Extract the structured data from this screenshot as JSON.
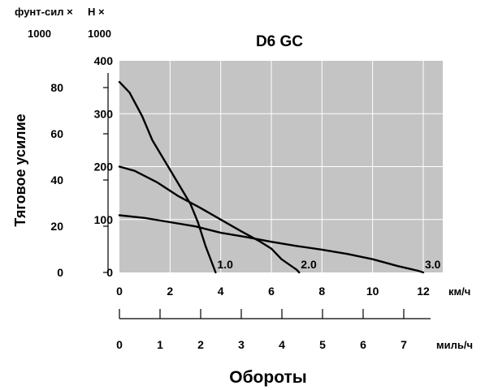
{
  "chart_data": {
    "type": "line",
    "title": "D6 GC",
    "xlabel": "Обороты",
    "ylabel": "Тяговое усилие",
    "units": {
      "klbf": [
        "фунт-сил ×",
        "1000"
      ],
      "kn": [
        "Н ×",
        "1000"
      ],
      "kmh": "км/ч",
      "mph": "миль/ч"
    },
    "x_kmh_ticks": [
      "0",
      "2",
      "4",
      "6",
      "8",
      "10",
      "12"
    ],
    "x_mph_ticks": [
      "0",
      "1",
      "2",
      "3",
      "4",
      "5",
      "6",
      "7"
    ],
    "y_klbf_ticks": [
      "0",
      "20",
      "40",
      "60",
      "80"
    ],
    "y_kn_ticks": [
      "0",
      "100",
      "200",
      "300",
      "400"
    ],
    "xlim_kmh": [
      0,
      12.5
    ],
    "ylim_kn": [
      0,
      400
    ],
    "grid": true,
    "series": [
      {
        "name": "1.0",
        "points": [
          [
            0,
            360
          ],
          [
            0.4,
            340
          ],
          [
            0.9,
            295
          ],
          [
            1.3,
            250
          ],
          [
            1.8,
            210
          ],
          [
            2.3,
            170
          ],
          [
            2.8,
            130
          ],
          [
            3.1,
            95
          ],
          [
            3.4,
            50
          ],
          [
            3.6,
            25
          ],
          [
            3.8,
            0
          ]
        ]
      },
      {
        "name": "2.0",
        "points": [
          [
            0,
            200
          ],
          [
            0.6,
            192
          ],
          [
            1.5,
            170
          ],
          [
            2.3,
            145
          ],
          [
            3.2,
            122
          ],
          [
            4.0,
            100
          ],
          [
            4.8,
            78
          ],
          [
            5.5,
            60
          ],
          [
            6.0,
            45
          ],
          [
            6.4,
            25
          ],
          [
            7.0,
            5
          ],
          [
            7.1,
            0
          ]
        ]
      },
      {
        "name": "3.0",
        "points": [
          [
            0,
            108
          ],
          [
            1.0,
            103
          ],
          [
            2.0,
            95
          ],
          [
            3.0,
            87
          ],
          [
            4.0,
            75
          ],
          [
            5.0,
            67
          ],
          [
            6.0,
            58
          ],
          [
            7.0,
            50
          ],
          [
            8.0,
            43
          ],
          [
            9.0,
            35
          ],
          [
            10.0,
            25
          ],
          [
            11.0,
            12
          ],
          [
            11.8,
            3
          ],
          [
            12.0,
            0
          ]
        ]
      }
    ]
  }
}
